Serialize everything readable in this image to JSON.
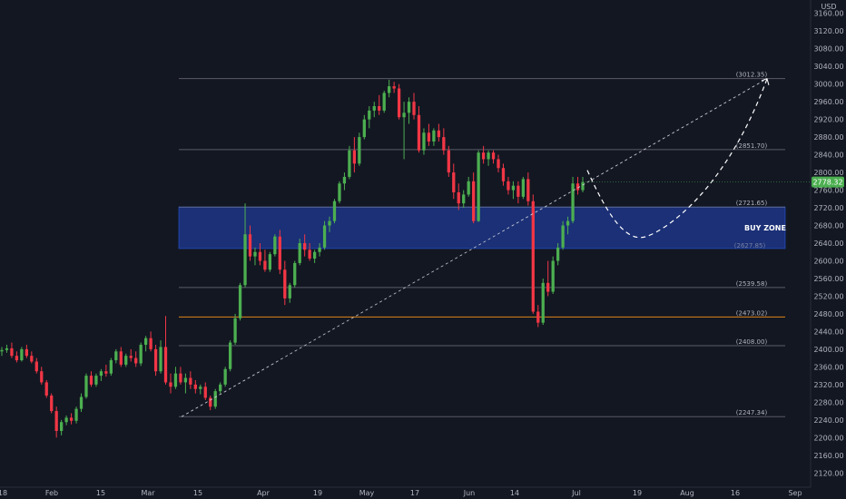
{
  "chart_data": {
    "type": "candlestick",
    "currency_label": "USD",
    "y_range": [
      2100,
      3180
    ],
    "y_ticks": [
      "3160.00",
      "3120.00",
      "3080.00",
      "3040.00",
      "3000.00",
      "2960.00",
      "2920.00",
      "2880.00",
      "2840.00",
      "2800.00",
      "2760.00",
      "2720.00",
      "2680.00",
      "2640.00",
      "2600.00",
      "2560.00",
      "2520.00",
      "2480.00",
      "2440.00",
      "2400.00",
      "2360.00",
      "2320.00",
      "2280.00",
      "2240.00",
      "2200.00",
      "2160.00",
      "2120.00"
    ],
    "x_ticks": [
      "18",
      "Feb",
      "15",
      "Mar",
      "15",
      "Apr",
      "19",
      "May",
      "17",
      "Jun",
      "14",
      "Jul",
      "19",
      "Aug",
      "16",
      "Sep"
    ],
    "current_price": "2778.32",
    "levels": [
      {
        "label": "(3012.35)",
        "value": 3012.35,
        "color": "#787b86"
      },
      {
        "label": "(2851.70)",
        "value": 2851.7,
        "color": "#787b86"
      },
      {
        "label": "(2721.65)",
        "value": 2721.65,
        "color": "#787b86"
      },
      {
        "label": "(2539.58)",
        "value": 2539.58,
        "color": "#787b86"
      },
      {
        "label": "(2473.02)",
        "value": 2473.02,
        "color": "#f7931a"
      },
      {
        "label": "(2408.00)",
        "value": 2408.0,
        "color": "#787b86"
      },
      {
        "label": "(2247.34)",
        "value": 2247.34,
        "color": "#787b86"
      }
    ],
    "buy_zone": {
      "label": "BUY ZONE",
      "top": 2721.65,
      "bottom": 2627.85,
      "bottom_label": "(2627.85)",
      "color": "#1f3a93"
    },
    "colors": {
      "up": "#4caf50",
      "down": "#f23645",
      "background": "#131722",
      "price_badge": "#4caf50"
    },
    "candles": [
      [
        2395,
        2405,
        2385,
        2398
      ],
      [
        2398,
        2410,
        2392,
        2402
      ],
      [
        2402,
        2415,
        2380,
        2385
      ],
      [
        2385,
        2395,
        2370,
        2375
      ],
      [
        2375,
        2405,
        2372,
        2400
      ],
      [
        2400,
        2410,
        2380,
        2385
      ],
      [
        2385,
        2395,
        2368,
        2372
      ],
      [
        2372,
        2380,
        2345,
        2350
      ],
      [
        2350,
        2360,
        2320,
        2325
      ],
      [
        2325,
        2330,
        2290,
        2295
      ],
      [
        2295,
        2300,
        2255,
        2260
      ],
      [
        2260,
        2270,
        2200,
        2215
      ],
      [
        2215,
        2240,
        2205,
        2235
      ],
      [
        2235,
        2250,
        2228,
        2245
      ],
      [
        2245,
        2255,
        2230,
        2238
      ],
      [
        2238,
        2270,
        2232,
        2265
      ],
      [
        2265,
        2300,
        2258,
        2292
      ],
      [
        2292,
        2345,
        2288,
        2340
      ],
      [
        2340,
        2350,
        2315,
        2320
      ],
      [
        2320,
        2345,
        2315,
        2340
      ],
      [
        2340,
        2355,
        2328,
        2350
      ],
      [
        2350,
        2365,
        2338,
        2345
      ],
      [
        2345,
        2380,
        2340,
        2375
      ],
      [
        2375,
        2400,
        2368,
        2395
      ],
      [
        2395,
        2405,
        2360,
        2365
      ],
      [
        2365,
        2390,
        2360,
        2385
      ],
      [
        2385,
        2400,
        2372,
        2380
      ],
      [
        2380,
        2395,
        2360,
        2368
      ],
      [
        2368,
        2415,
        2362,
        2410
      ],
      [
        2410,
        2430,
        2395,
        2425
      ],
      [
        2425,
        2440,
        2395,
        2400
      ],
      [
        2400,
        2410,
        2340,
        2350
      ],
      [
        2350,
        2420,
        2345,
        2405
      ],
      [
        2405,
        2475,
        2320,
        2325
      ],
      [
        2325,
        2345,
        2300,
        2315
      ],
      [
        2315,
        2360,
        2310,
        2345
      ],
      [
        2345,
        2360,
        2320,
        2325
      ],
      [
        2325,
        2345,
        2300,
        2335
      ],
      [
        2335,
        2350,
        2310,
        2320
      ],
      [
        2320,
        2330,
        2300,
        2310
      ],
      [
        2310,
        2320,
        2298,
        2315
      ],
      [
        2315,
        2325,
        2285,
        2290
      ],
      [
        2290,
        2295,
        2262,
        2270
      ],
      [
        2270,
        2310,
        2265,
        2305
      ],
      [
        2305,
        2325,
        2300,
        2320
      ],
      [
        2320,
        2360,
        2315,
        2355
      ],
      [
        2355,
        2420,
        2350,
        2415
      ],
      [
        2415,
        2480,
        2410,
        2470
      ],
      [
        2470,
        2550,
        2465,
        2545
      ],
      [
        2545,
        2730,
        2540,
        2660
      ],
      [
        2660,
        2680,
        2600,
        2610
      ],
      [
        2610,
        2630,
        2590,
        2620
      ],
      [
        2620,
        2640,
        2590,
        2600
      ],
      [
        2600,
        2625,
        2575,
        2580
      ],
      [
        2580,
        2620,
        2575,
        2615
      ],
      [
        2615,
        2660,
        2610,
        2655
      ],
      [
        2655,
        2670,
        2570,
        2580
      ],
      [
        2580,
        2600,
        2500,
        2515
      ],
      [
        2515,
        2550,
        2505,
        2545
      ],
      [
        2545,
        2600,
        2540,
        2595
      ],
      [
        2595,
        2650,
        2590,
        2640
      ],
      [
        2640,
        2660,
        2610,
        2625
      ],
      [
        2625,
        2640,
        2600,
        2605
      ],
      [
        2605,
        2625,
        2595,
        2620
      ],
      [
        2620,
        2640,
        2610,
        2630
      ],
      [
        2630,
        2690,
        2625,
        2680
      ],
      [
        2680,
        2700,
        2665,
        2690
      ],
      [
        2690,
        2740,
        2685,
        2735
      ],
      [
        2735,
        2780,
        2730,
        2775
      ],
      [
        2775,
        2800,
        2760,
        2790
      ],
      [
        2790,
        2860,
        2785,
        2850
      ],
      [
        2850,
        2880,
        2800,
        2820
      ],
      [
        2820,
        2890,
        2815,
        2880
      ],
      [
        2880,
        2930,
        2875,
        2920
      ],
      [
        2920,
        2950,
        2900,
        2940
      ],
      [
        2940,
        2960,
        2925,
        2950
      ],
      [
        2950,
        2975,
        2930,
        2940
      ],
      [
        2940,
        2985,
        2935,
        2980
      ],
      [
        2980,
        3010,
        2970,
        2995
      ],
      [
        2995,
        3005,
        2980,
        2990
      ],
      [
        2990,
        3000,
        2920,
        2925
      ],
      [
        2925,
        2960,
        2830,
        2935
      ],
      [
        2935,
        2970,
        2910,
        2960
      ],
      [
        2960,
        2980,
        2920,
        2930
      ],
      [
        2930,
        2950,
        2845,
        2850
      ],
      [
        2850,
        2900,
        2840,
        2890
      ],
      [
        2890,
        2910,
        2860,
        2870
      ],
      [
        2870,
        2900,
        2860,
        2895
      ],
      [
        2895,
        2910,
        2870,
        2880
      ],
      [
        2880,
        2900,
        2840,
        2850
      ],
      [
        2850,
        2860,
        2790,
        2800
      ],
      [
        2800,
        2820,
        2740,
        2755
      ],
      [
        2755,
        2775,
        2715,
        2730
      ],
      [
        2730,
        2760,
        2720,
        2750
      ],
      [
        2750,
        2790,
        2745,
        2780
      ],
      [
        2780,
        2800,
        2685,
        2690
      ],
      [
        2690,
        2850,
        2688,
        2845
      ],
      [
        2845,
        2860,
        2820,
        2830
      ],
      [
        2830,
        2850,
        2815,
        2845
      ],
      [
        2845,
        2850,
        2820,
        2830
      ],
      [
        2830,
        2840,
        2800,
        2810
      ],
      [
        2810,
        2820,
        2770,
        2780
      ],
      [
        2780,
        2790,
        2750,
        2760
      ],
      [
        2760,
        2780,
        2740,
        2770
      ],
      [
        2770,
        2780,
        2730,
        2745
      ],
      [
        2745,
        2790,
        2740,
        2785
      ],
      [
        2785,
        2800,
        2725,
        2735
      ],
      [
        2735,
        2750,
        2480,
        2485
      ],
      [
        2485,
        2500,
        2450,
        2460
      ],
      [
        2460,
        2560,
        2455,
        2550
      ],
      [
        2550,
        2600,
        2520,
        2530
      ],
      [
        2530,
        2610,
        2525,
        2600
      ],
      [
        2600,
        2640,
        2590,
        2630
      ],
      [
        2630,
        2690,
        2625,
        2680
      ],
      [
        2680,
        2700,
        2660,
        2690
      ],
      [
        2690,
        2790,
        2685,
        2775
      ],
      [
        2775,
        2790,
        2750,
        2760
      ],
      [
        2760,
        2790,
        2755,
        2778.32
      ]
    ]
  }
}
